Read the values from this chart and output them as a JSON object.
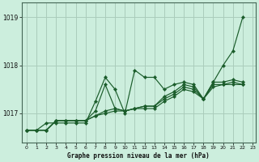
{
  "title": "Graphe pression niveau de la mer (hPa)",
  "bg_color": "#cceedd",
  "grid_color": "#aaccbb",
  "line_color": "#1a5c2a",
  "x_min": 0,
  "x_max": 23,
  "y_min": 1016.4,
  "y_max": 1019.3,
  "yticks": [
    1017,
    1018,
    1019
  ],
  "xticks": [
    0,
    1,
    2,
    3,
    4,
    5,
    6,
    7,
    8,
    9,
    10,
    11,
    12,
    13,
    14,
    15,
    16,
    17,
    18,
    19,
    20,
    21,
    22,
    23
  ],
  "series": [
    [
      1016.65,
      1016.65,
      1016.8,
      1016.8,
      1016.8,
      1016.8,
      1016.8,
      1017.25,
      1017.75,
      1017.5,
      1017.0,
      1017.9,
      1017.75,
      1017.75,
      1017.5,
      1017.6,
      1017.65,
      1017.6,
      1017.3,
      1017.65,
      1018.0,
      1018.3,
      1019.0,
      null
    ],
    [
      1016.65,
      1016.65,
      1016.65,
      1016.85,
      1016.85,
      1016.85,
      1016.85,
      1017.05,
      1017.6,
      1017.1,
      1017.05,
      1017.1,
      1017.15,
      1017.15,
      1017.35,
      1017.45,
      1017.6,
      1017.55,
      1017.3,
      1017.65,
      1017.65,
      1017.7,
      1017.65,
      null
    ],
    [
      1016.65,
      1016.65,
      1016.65,
      1016.85,
      1016.85,
      1016.85,
      1016.85,
      1016.95,
      1017.05,
      1017.1,
      1017.05,
      1017.1,
      1017.15,
      1017.15,
      1017.3,
      1017.4,
      1017.55,
      1017.5,
      1017.3,
      1017.6,
      1017.6,
      1017.65,
      1017.6,
      null
    ],
    [
      1016.65,
      1016.65,
      1016.65,
      1016.85,
      1016.85,
      1016.85,
      1016.85,
      1016.95,
      1017.0,
      1017.05,
      1017.05,
      1017.1,
      1017.1,
      1017.1,
      1017.25,
      1017.35,
      1017.5,
      1017.45,
      1017.3,
      1017.55,
      1017.6,
      1017.6,
      1017.6,
      null
    ]
  ],
  "figsize": [
    3.2,
    2.0
  ],
  "dpi": 100
}
